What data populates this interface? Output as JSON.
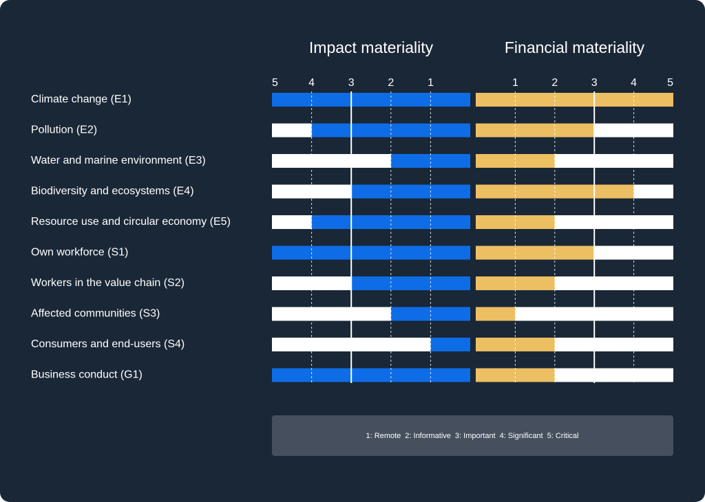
{
  "chart_data": {
    "type": "bar",
    "orientation": "horizontal",
    "categories": [
      "Climate change (E1)",
      "Pollution (E2)",
      "Water and marine environment (E3)",
      "Biodiversity and ecosystems (E4)",
      "Resource use and circular economy (E5)",
      "Own workforce (S1)",
      "Workers in the value chain (S2)",
      "Affected communities (S3)",
      "Consumers and end-users (S4)",
      "Business conduct (G1)"
    ],
    "series": [
      {
        "name": "Impact materiality",
        "color": "#0e6de6",
        "values": [
          5,
          4,
          2,
          3,
          4,
          5,
          3,
          2,
          1,
          5
        ],
        "xlim": [
          5,
          0
        ],
        "xticks": [
          5,
          4,
          3,
          2,
          1
        ]
      },
      {
        "name": "Financial materiality",
        "color": "#ecbf62",
        "values": [
          5,
          3,
          2,
          4,
          2,
          3,
          2,
          1,
          2,
          2
        ],
        "xlim": [
          0,
          5
        ],
        "xticks": [
          1,
          2,
          3,
          4,
          5
        ]
      }
    ],
    "threshold": 3,
    "grid": true,
    "scale_note": [
      "1: Remote",
      "2: Informative",
      "3: Important",
      "4: Significant",
      "5: Critical"
    ]
  }
}
